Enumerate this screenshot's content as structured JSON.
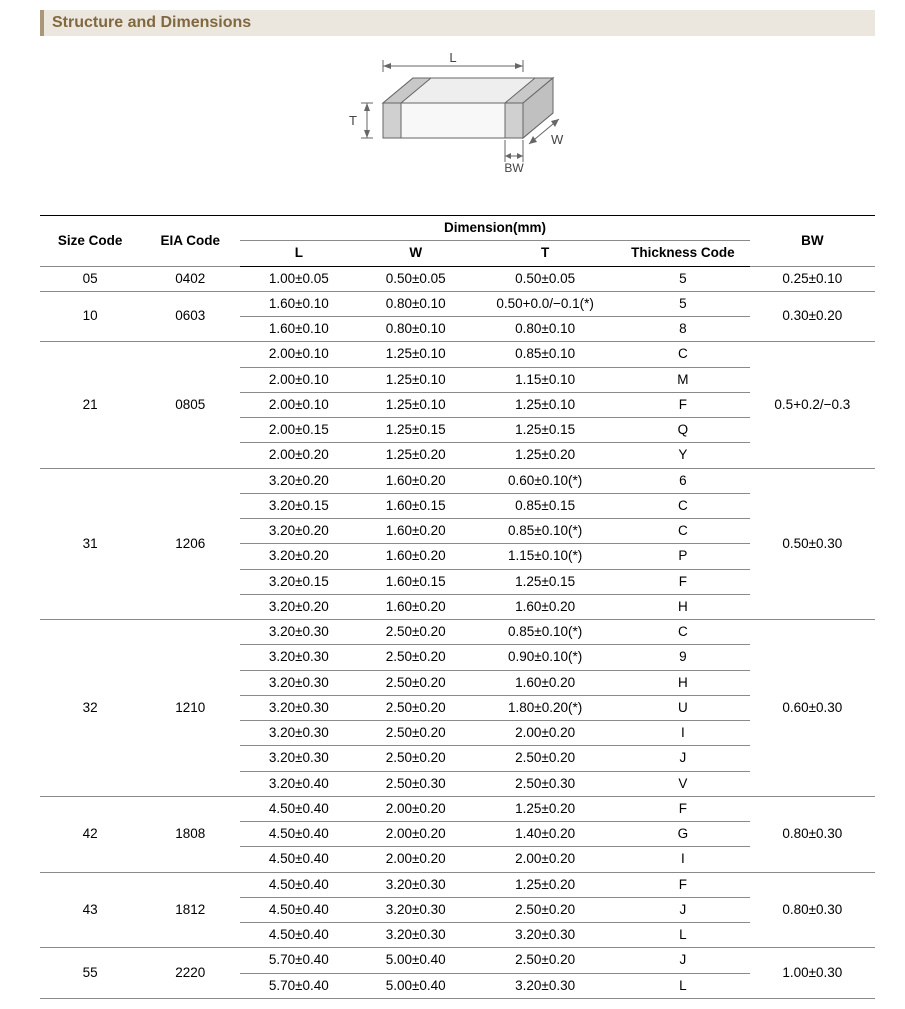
{
  "title": "Structure and Dimensions",
  "diagram": {
    "labels": {
      "L": "L",
      "W": "W",
      "T": "T",
      "BW": "BW"
    },
    "stroke": "#666666",
    "fill_top": "#e8e8e8",
    "fill_front": "#f6f6f6",
    "fill_side": "#d6d6d6",
    "terminal_fill": "#cccccc"
  },
  "headers": {
    "size": "Size Code",
    "eia": "EIA Code",
    "dim": "Dimension(mm)",
    "L": "L",
    "W": "W",
    "T": "T",
    "thick": "Thickness  Code",
    "BW": "BW"
  },
  "groups": [
    {
      "size": "05",
      "eia": "0402",
      "bw": "0.25±0.10",
      "rows": [
        {
          "L": "1.00±0.05",
          "W": "0.50±0.05",
          "T": "0.50±0.05",
          "th": "5"
        }
      ]
    },
    {
      "size": "10",
      "eia": "0603",
      "bw": "0.30±0.20",
      "rows": [
        {
          "L": "1.60±0.10",
          "W": "0.80±0.10",
          "T": "0.50+0.0/−0.1(*)",
          "th": "5"
        },
        {
          "L": "1.60±0.10",
          "W": "0.80±0.10",
          "T": "0.80±0.10",
          "th": "8"
        }
      ]
    },
    {
      "size": "21",
      "eia": "0805",
      "bw": "0.5+0.2/−0.3",
      "rows": [
        {
          "L": "2.00±0.10",
          "W": "1.25±0.10",
          "T": "0.85±0.10",
          "th": "C"
        },
        {
          "L": "2.00±0.10",
          "W": "1.25±0.10",
          "T": "1.15±0.10",
          "th": "M"
        },
        {
          "L": "2.00±0.10",
          "W": "1.25±0.10",
          "T": "1.25±0.10",
          "th": "F"
        },
        {
          "L": "2.00±0.15",
          "W": "1.25±0.15",
          "T": "1.25±0.15",
          "th": "Q"
        },
        {
          "L": "2.00±0.20",
          "W": "1.25±0.20",
          "T": "1.25±0.20",
          "th": "Y"
        }
      ]
    },
    {
      "size": "31",
      "eia": "1206",
      "bw": "0.50±0.30",
      "rows": [
        {
          "L": "3.20±0.20",
          "W": "1.60±0.20",
          "T": "0.60±0.10(*)",
          "th": "6"
        },
        {
          "L": "3.20±0.15",
          "W": "1.60±0.15",
          "T": "0.85±0.15",
          "th": "C"
        },
        {
          "L": "3.20±0.20",
          "W": "1.60±0.20",
          "T": "0.85±0.10(*)",
          "th": "C"
        },
        {
          "L": "3.20±0.20",
          "W": "1.60±0.20",
          "T": "1.15±0.10(*)",
          "th": "P"
        },
        {
          "L": "3.20±0.15",
          "W": "1.60±0.15",
          "T": "1.25±0.15",
          "th": "F"
        },
        {
          "L": "3.20±0.20",
          "W": "1.60±0.20",
          "T": "1.60±0.20",
          "th": "H"
        }
      ]
    },
    {
      "size": "32",
      "eia": "1210",
      "bw": "0.60±0.30",
      "rows": [
        {
          "L": "3.20±0.30",
          "W": "2.50±0.20",
          "T": "0.85±0.10(*)",
          "th": "C"
        },
        {
          "L": "3.20±0.30",
          "W": "2.50±0.20",
          "T": "0.90±0.10(*)",
          "th": "9"
        },
        {
          "L": "3.20±0.30",
          "W": "2.50±0.20",
          "T": "1.60±0.20",
          "th": "H"
        },
        {
          "L": "3.20±0.30",
          "W": "2.50±0.20",
          "T": "1.80±0.20(*)",
          "th": "U"
        },
        {
          "L": "3.20±0.30",
          "W": "2.50±0.20",
          "T": "2.00±0.20",
          "th": "I"
        },
        {
          "L": "3.20±0.30",
          "W": "2.50±0.20",
          "T": "2.50±0.20",
          "th": "J"
        },
        {
          "L": "3.20±0.40",
          "W": "2.50±0.30",
          "T": "2.50±0.30",
          "th": "V"
        }
      ]
    },
    {
      "size": "42",
      "eia": "1808",
      "bw": "0.80±0.30",
      "rows": [
        {
          "L": "4.50±0.40",
          "W": "2.00±0.20",
          "T": "1.25±0.20",
          "th": "F"
        },
        {
          "L": "4.50±0.40",
          "W": "2.00±0.20",
          "T": "1.40±0.20",
          "th": "G"
        },
        {
          "L": "4.50±0.40",
          "W": "2.00±0.20",
          "T": "2.00±0.20",
          "th": "I"
        }
      ]
    },
    {
      "size": "43",
      "eia": "1812",
      "bw": "0.80±0.30",
      "rows": [
        {
          "L": "4.50±0.40",
          "W": "3.20±0.30",
          "T": "1.25±0.20",
          "th": "F"
        },
        {
          "L": "4.50±0.40",
          "W": "3.20±0.30",
          "T": "2.50±0.20",
          "th": "J"
        },
        {
          "L": "4.50±0.40",
          "W": "3.20±0.30",
          "T": "3.20±0.30",
          "th": "L"
        }
      ]
    },
    {
      "size": "55",
      "eia": "2220",
      "bw": "1.00±0.30",
      "rows": [
        {
          "L": "5.70±0.40",
          "W": "5.00±0.40",
          "T": "2.50±0.20",
          "th": "J"
        },
        {
          "L": "5.70±0.40",
          "W": "5.00±0.40",
          "T": "3.20±0.30",
          "th": "L"
        }
      ]
    }
  ],
  "style": {
    "title_bg": "#ece7de",
    "title_accent": "#a89878",
    "title_color": "#806840",
    "border_color": "#8a8a8a",
    "heavy_border": "#000000",
    "font_size_cell": 13.5,
    "font_size_title": 16
  }
}
